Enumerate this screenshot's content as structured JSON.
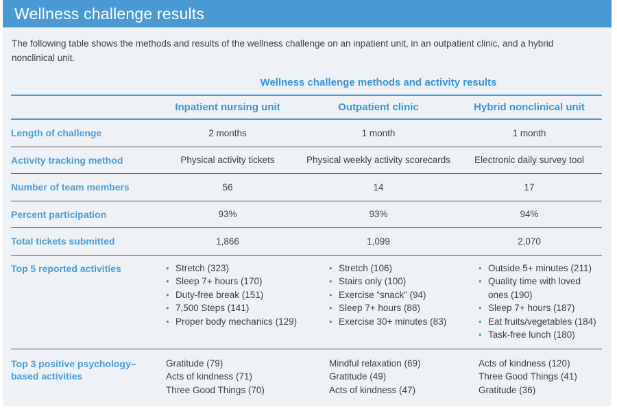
{
  "page": {
    "title": "Wellness challenge results",
    "intro": "The following table shows the methods and results of the wellness challenge on an inpatient unit, in an outpatient clinic, and a hybrid nonclinical unit."
  },
  "colors": {
    "accent_blue": "#4a99d2",
    "heading_blue": "#3793d3",
    "label_blue": "#4a9cd6",
    "bullet_teal": "#3f9b90",
    "panel_background": "#eef2f6",
    "body_text": "#3c3c3c"
  },
  "icons": {
    "bullet": "•"
  },
  "table": {
    "title": "Wellness challenge methods and activity results",
    "columns": [
      "Inpatient nursing unit",
      "Outpatient clinic",
      "Hybrid nonclinical unit"
    ],
    "rows": [
      {
        "label": "Length of challenge",
        "values": [
          "2 months",
          "1 month",
          "1 month"
        ]
      },
      {
        "label": "Activity tracking method",
        "values": [
          "Physical activity tickets",
          "Physical weekly activity scorecards",
          "Electronic daily survey tool"
        ]
      },
      {
        "label": "Number of team members",
        "values": [
          "56",
          "14",
          "17"
        ]
      },
      {
        "label": "Percent participation",
        "values": [
          "93%",
          "93%",
          "94%"
        ]
      },
      {
        "label": "Total tickets submitted",
        "values": [
          "1,866",
          "1,099",
          "2,070"
        ]
      },
      {
        "label": "Top 5 reported activities",
        "lists": [
          [
            "Stretch (323)",
            "Sleep 7+ hours (170)",
            "Duty-free break (151)",
            "7,500 Steps (141)",
            "Proper body mechanics (129)"
          ],
          [
            "Stretch (106)",
            "Stairs only (100)",
            "Exercise “snack” (94)",
            "Sleep 7+ hours (88)",
            "Exercise 30+ minutes (83)"
          ],
          [
            "Outside 5+ minutes (211)",
            "Quality time with loved ones (190)",
            "Sleep 7+ hours (187)",
            "Eat fruits/vegetables (184)",
            "Task-free lunch (180)"
          ]
        ]
      },
      {
        "label": "Top 3 positive psychology–based activities",
        "lists": [
          [
            "Gratitude (79)",
            "Acts of kindness (71)",
            "Three Good Things (70)"
          ],
          [
            "Mindful relaxation (69)",
            "Gratitude (49)",
            "Acts of kindness (47)"
          ],
          [
            "Acts of kindness (120)",
            "Three Good Things (41)",
            "Gratitude (36)"
          ]
        ]
      }
    ]
  }
}
